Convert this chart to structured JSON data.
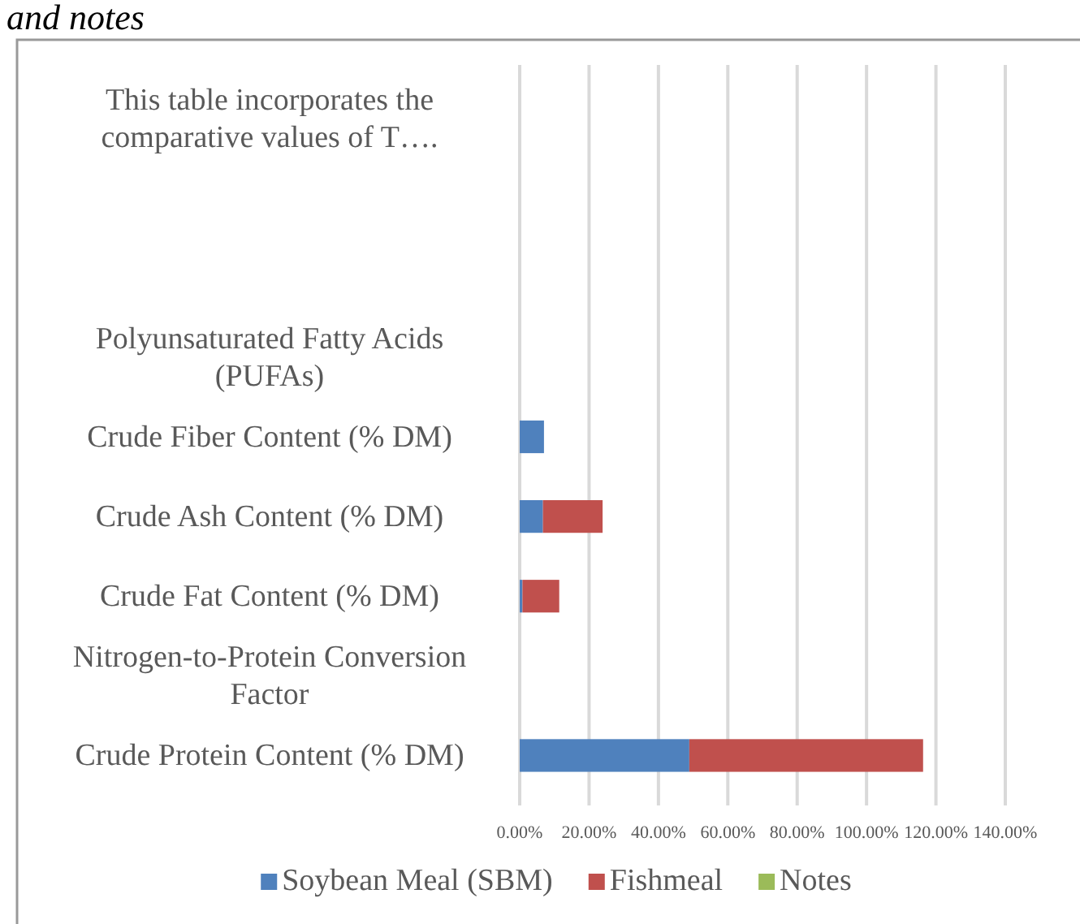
{
  "chart_data": {
    "type": "bar",
    "orientation": "horizontal",
    "stacked": true,
    "annotations": [
      "and notes"
    ],
    "categories": [
      "This table incorporates the comparative values of T….",
      null,
      null,
      "Polyunsaturated Fatty Acids (PUFAs)",
      "Crude Fiber Content (% DM)",
      "Crude Ash Content (% DM)",
      "Crude Fat Content (% DM)",
      "Nitrogen-to-Protein Conversion Factor",
      "Crude Protein Content (% DM)"
    ],
    "series": [
      {
        "name": "Soybean Meal (SBM)",
        "color": "#4f81bd",
        "values": [
          null,
          null,
          null,
          null,
          7,
          6.7,
          0.8,
          null,
          48.9
        ]
      },
      {
        "name": "Fishmeal",
        "color": "#c0504d",
        "values": [
          null,
          null,
          null,
          null,
          null,
          17.2,
          10.6,
          null,
          67.4
        ]
      },
      {
        "name": "Notes",
        "color": "#9bbb59",
        "values": [
          null,
          null,
          null,
          null,
          null,
          null,
          null,
          null,
          null
        ]
      }
    ],
    "xlim": [
      0,
      140
    ],
    "xticks": [
      {
        "value": 0,
        "label": "0.00%"
      },
      {
        "value": 20,
        "label": "20.00%"
      },
      {
        "value": 40,
        "label": "40.00%"
      },
      {
        "value": 60,
        "label": "60.00%"
      },
      {
        "value": 80,
        "label": "80.00%"
      },
      {
        "value": 100,
        "label": "100.00%"
      },
      {
        "value": 120,
        "label": "120.00%"
      },
      {
        "value": 140,
        "label": "140.00%"
      }
    ],
    "grid": "x",
    "legend": "bottom"
  }
}
